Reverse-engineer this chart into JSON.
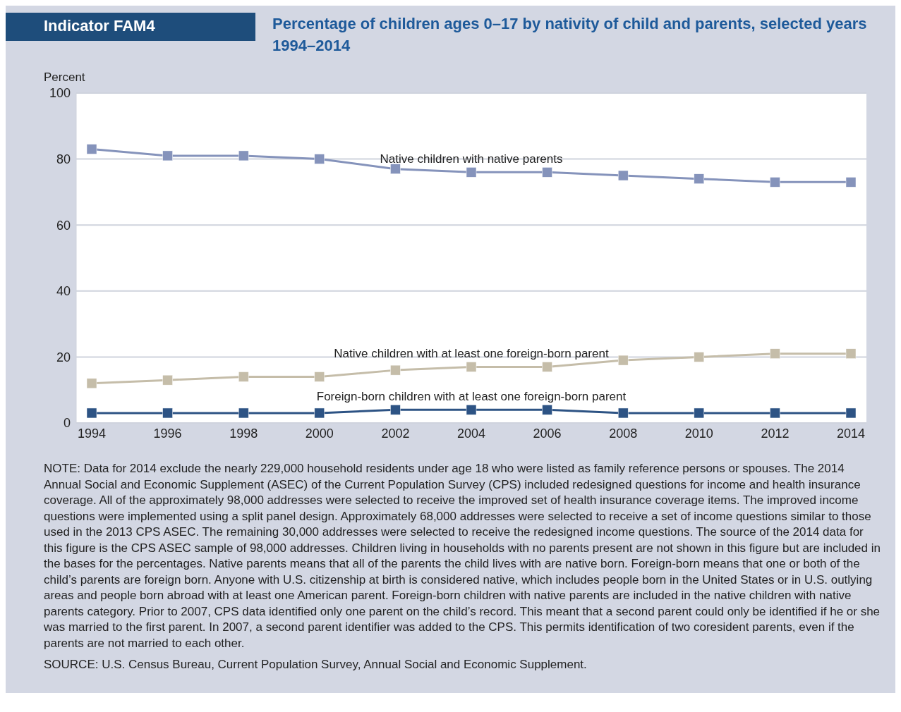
{
  "chart_data": {
    "type": "line",
    "title": "Percentage of children ages 0–17 by nativity of child and parents, selected years 1994–2014",
    "ylabel": "Percent",
    "annotations": [
      "Indicator FAM4",
      "NOTE: Data for 2014 exclude the nearly 229,000 household residents under age 18 who were listed as family reference persons or spouses. The 2014 Annual Social and Economic Supplement (ASEC) of the Current Population Survey (CPS) included redesigned questions for income and health insurance coverage. All of the approximately 98,000 addresses were selected to receive the improved set of health insurance coverage items. The improved income questions were implemented using a split panel design. Approximately 68,000 addresses were selected to receive a set of income questions similar to those used in the 2013 CPS ASEC. The remaining 30,000 addresses were selected to receive the redesigned income questions. The source of the 2014 data for this figure is the CPS ASEC sample of 98,000 addresses. Children living in households with no parents present are not shown in this figure but are included in the bases for the percentages. Native parents means that all of the parents the child lives with are native born. Foreign-born means that one or both of the child’s parents are foreign born. Anyone with U.S. citizenship at birth is considered native, which includes people born in the United States or in U.S. outlying areas and people born abroad with at least one American parent. Foreign-born children with native parents are included in the native children with native parents category. Prior to 2007, CPS data identified only one parent on the child’s record. This meant that a second parent could only be identified if he or she was married to the first parent. In 2007, a second parent identifier was added to the CPS. This permits identification of two coresident parents, even if the parents are not married to each other.",
      "SOURCE: U.S. Census Bureau, Current Population Survey, Annual Social and Economic Supplement."
    ],
    "categories": [
      "1994",
      "1996",
      "1998",
      "2000",
      "2002",
      "2004",
      "2006",
      "2008",
      "2010",
      "2012",
      "2014"
    ],
    "series": [
      {
        "name": "Native children with native parents",
        "color": "#8593bb",
        "values": [
          83,
          81,
          81,
          80,
          77,
          76,
          76,
          75,
          74,
          73,
          73
        ]
      },
      {
        "name": "Native children with at least one foreign-born parent",
        "color": "#c5bda9",
        "values": [
          12,
          13,
          14,
          14,
          16,
          17,
          17,
          19,
          20,
          21,
          21
        ]
      },
      {
        "name": "Foreign-born children with at least one foreign-born parent",
        "color": "#2d5384",
        "values": [
          3,
          3,
          3,
          3,
          4,
          4,
          4,
          3,
          3,
          3,
          3
        ]
      }
    ],
    "ylim": [
      0,
      100
    ],
    "yticks": [
      0,
      20,
      40,
      60,
      80,
      100
    ],
    "grid": "y",
    "legend": false,
    "marker": "square",
    "line_style": "solid"
  }
}
